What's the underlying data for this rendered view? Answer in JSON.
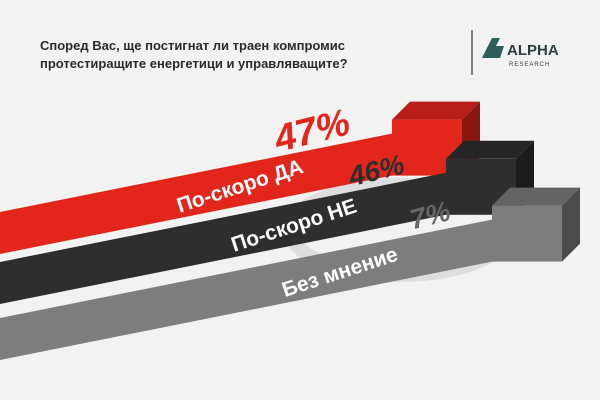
{
  "chart_data": {
    "type": "bar",
    "title": [
      "Според Вас, ще постигнат ли траен компромис",
      "протестиращите енергетици и управляващите?"
    ],
    "logo": {
      "name": "ALPHA",
      "subtitle": "RESEARCH"
    },
    "categories": [
      "По-скоро ДА",
      "По-скоро НЕ",
      "Без мнение"
    ],
    "values": [
      47,
      46,
      7
    ],
    "value_labels": [
      "47%",
      "46%",
      "7%"
    ],
    "colors": [
      "#e3261b",
      "#2e2e2e",
      "#7d7d7d"
    ]
  }
}
